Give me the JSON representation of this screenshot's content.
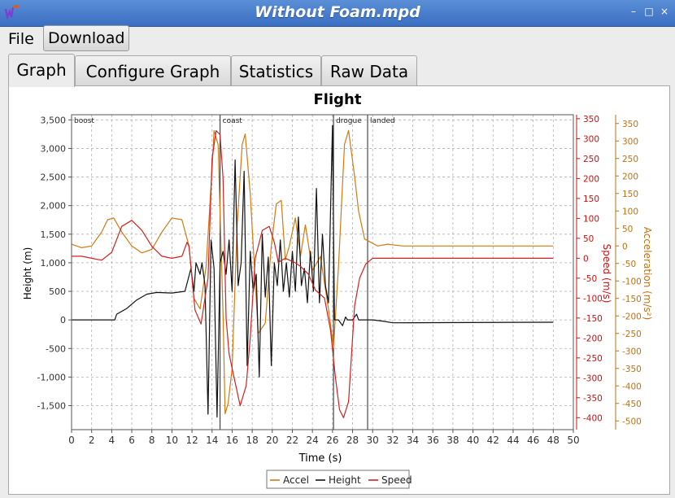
{
  "window": {
    "title": "Without Foam.mpd",
    "buttons": [
      "–",
      "□",
      "×"
    ]
  },
  "menu": {
    "file": "File",
    "download": "Download"
  },
  "tabs": [
    {
      "label": "Graph",
      "active": true
    },
    {
      "label": "Configure Graph",
      "active": false
    },
    {
      "label": "Statistics",
      "active": false
    },
    {
      "label": "Raw Data",
      "active": false
    }
  ],
  "chart_data": {
    "type": "line",
    "title": "Flight",
    "xlabel": "Time (s)",
    "ylabel_left": "Height (m)",
    "ylabel_speed": "Speed (m/s)",
    "ylabel_accel": "Acceleration (m/s²)",
    "xlim": [
      0,
      50
    ],
    "xticks": [
      0,
      2,
      4,
      6,
      8,
      10,
      12,
      14,
      16,
      18,
      20,
      22,
      24,
      26,
      28,
      30,
      32,
      34,
      36,
      38,
      40,
      42,
      44,
      46,
      48,
      50
    ],
    "height_ticks": [
      3500,
      3000,
      2500,
      2000,
      1500,
      1000,
      500,
      0,
      -500,
      -1000,
      -1500
    ],
    "height_tick_labels": [
      "3,500",
      "3,000",
      "2,500",
      "2,000",
      "1,500",
      "1,000",
      "500",
      "0",
      "-500",
      "-1,000",
      "-1,500"
    ],
    "height_lim": [
      -1920,
      3590
    ],
    "speed_ticks": [
      350,
      300,
      250,
      200,
      150,
      100,
      50,
      0,
      -50,
      -100,
      -150,
      -200,
      -250,
      -300,
      -350,
      -400
    ],
    "speed_lim": [
      -430,
      360
    ],
    "accel_ticks": [
      350,
      300,
      250,
      200,
      150,
      100,
      50,
      0,
      -50,
      -100,
      -150,
      -200,
      -250,
      -300,
      -350,
      -400,
      -450,
      -500
    ],
    "accel_lim": [
      -525,
      375
    ],
    "grid": true,
    "legend_position": "bottom",
    "events": [
      {
        "label": "boost",
        "t": 0
      },
      {
        "label": "coast",
        "t": 14.8
      },
      {
        "label": "drogue",
        "t": 26.1
      },
      {
        "label": "landed",
        "t": 29.5
      }
    ],
    "series": [
      {
        "name": "Accel",
        "axis": "accel",
        "color": "#d47a10",
        "points": [
          [
            0,
            5
          ],
          [
            1,
            -5
          ],
          [
            2,
            0
          ],
          [
            3,
            40
          ],
          [
            3.6,
            75
          ],
          [
            4.2,
            80
          ],
          [
            5,
            40
          ],
          [
            6,
            0
          ],
          [
            7,
            -20
          ],
          [
            8,
            -10
          ],
          [
            9,
            40
          ],
          [
            10,
            80
          ],
          [
            11,
            75
          ],
          [
            11.7,
            0
          ],
          [
            12.2,
            -150
          ],
          [
            12.8,
            -180
          ],
          [
            13.4,
            -60
          ],
          [
            14,
            220
          ],
          [
            14.2,
            330
          ],
          [
            14.6,
            290
          ],
          [
            15.1,
            -200
          ],
          [
            15.3,
            -480
          ],
          [
            15.6,
            -450
          ],
          [
            16,
            -350
          ],
          [
            16.5,
            60
          ],
          [
            17,
            290
          ],
          [
            17.3,
            320
          ],
          [
            17.8,
            150
          ],
          [
            18.6,
            -250
          ],
          [
            19.3,
            -220
          ],
          [
            19.9,
            0
          ],
          [
            20.4,
            120
          ],
          [
            20.9,
            130
          ],
          [
            21.3,
            -40
          ],
          [
            21.7,
            0
          ],
          [
            22.3,
            80
          ],
          [
            22.8,
            -30
          ],
          [
            23.3,
            60
          ],
          [
            24,
            -70
          ],
          [
            24.8,
            -30
          ],
          [
            25.6,
            -180
          ],
          [
            26.1,
            -290
          ],
          [
            26.6,
            -60
          ],
          [
            27.2,
            290
          ],
          [
            27.6,
            330
          ],
          [
            28.2,
            200
          ],
          [
            28.6,
            100
          ],
          [
            29.2,
            20
          ],
          [
            30.5,
            0
          ],
          [
            31.5,
            5
          ],
          [
            33,
            0
          ],
          [
            48,
            0
          ]
        ]
      },
      {
        "name": "Height",
        "axis": "height",
        "color": "#111111",
        "points": [
          [
            0,
            0
          ],
          [
            3,
            0
          ],
          [
            4.3,
            0
          ],
          [
            4.5,
            100
          ],
          [
            5.5,
            200
          ],
          [
            6.5,
            350
          ],
          [
            7.5,
            450
          ],
          [
            8.5,
            480
          ],
          [
            10,
            470
          ],
          [
            11.3,
            500
          ],
          [
            11.6,
            700
          ],
          [
            11.9,
            900
          ],
          [
            12.2,
            500
          ],
          [
            12.4,
            1000
          ],
          [
            12.8,
            800
          ],
          [
            13.0,
            1000
          ],
          [
            13.3,
            600
          ],
          [
            13.6,
            -1650
          ],
          [
            13.9,
            1400
          ],
          [
            14.2,
            900
          ],
          [
            14.5,
            -1700
          ],
          [
            14.8,
            1000
          ],
          [
            15.1,
            1200
          ],
          [
            15.4,
            800
          ],
          [
            15.7,
            1400
          ],
          [
            16.0,
            500
          ],
          [
            16.3,
            2800
          ],
          [
            16.6,
            600
          ],
          [
            16.9,
            1000
          ],
          [
            17.2,
            2600
          ],
          [
            17.5,
            -800
          ],
          [
            17.8,
            1200
          ],
          [
            18.1,
            500
          ],
          [
            18.4,
            800
          ],
          [
            18.7,
            -1000
          ],
          [
            19.0,
            1500
          ],
          [
            19.3,
            400
          ],
          [
            19.6,
            1100
          ],
          [
            19.9,
            -800
          ],
          [
            20.2,
            1000
          ],
          [
            20.5,
            600
          ],
          [
            20.8,
            1400
          ],
          [
            21.1,
            500
          ],
          [
            21.4,
            1000
          ],
          [
            21.7,
            400
          ],
          [
            22.0,
            1200
          ],
          [
            22.3,
            500
          ],
          [
            22.6,
            1800
          ],
          [
            22.9,
            600
          ],
          [
            23.2,
            900
          ],
          [
            23.5,
            300
          ],
          [
            23.8,
            1200
          ],
          [
            24.1,
            500
          ],
          [
            24.4,
            2300
          ],
          [
            24.7,
            300
          ],
          [
            25.0,
            1500
          ],
          [
            25.3,
            600
          ],
          [
            25.6,
            300
          ],
          [
            26.0,
            3400
          ],
          [
            26.2,
            0
          ],
          [
            26.6,
            0
          ],
          [
            27,
            -100
          ],
          [
            27.3,
            50
          ],
          [
            27.5,
            0
          ],
          [
            28,
            0
          ],
          [
            28.4,
            100
          ],
          [
            28.6,
            0
          ],
          [
            30,
            0
          ],
          [
            31,
            -20
          ],
          [
            32,
            -50
          ],
          [
            48,
            -40
          ]
        ]
      },
      {
        "name": "Speed",
        "axis": "speed",
        "color": "#d42020",
        "points": [
          [
            0,
            5
          ],
          [
            1,
            5
          ],
          [
            2,
            0
          ],
          [
            3,
            -5
          ],
          [
            4,
            15
          ],
          [
            5,
            80
          ],
          [
            6,
            95
          ],
          [
            7,
            70
          ],
          [
            8,
            30
          ],
          [
            9,
            5
          ],
          [
            10,
            0
          ],
          [
            11,
            5
          ],
          [
            11.5,
            40
          ],
          [
            11.7,
            30
          ],
          [
            12.3,
            -130
          ],
          [
            12.9,
            -165
          ],
          [
            13.6,
            -50
          ],
          [
            14,
            250
          ],
          [
            14.4,
            320
          ],
          [
            14.8,
            310
          ],
          [
            15.1,
            200
          ],
          [
            15.4,
            -150
          ],
          [
            15.7,
            -240
          ],
          [
            16.2,
            -300
          ],
          [
            16.8,
            -370
          ],
          [
            17.4,
            -320
          ],
          [
            17.8,
            -200
          ],
          [
            18.3,
            0
          ],
          [
            19,
            70
          ],
          [
            19.7,
            80
          ],
          [
            20.2,
            40
          ],
          [
            20.6,
            -10
          ],
          [
            21.3,
            0
          ],
          [
            22.2,
            -10
          ],
          [
            22.8,
            -20
          ],
          [
            23.6,
            -40
          ],
          [
            24.3,
            -80
          ],
          [
            25.2,
            -100
          ],
          [
            25.8,
            -180
          ],
          [
            26.3,
            -300
          ],
          [
            26.7,
            -380
          ],
          [
            27.1,
            -400
          ],
          [
            27.6,
            -360
          ],
          [
            28.2,
            -120
          ],
          [
            28.7,
            -50
          ],
          [
            29.3,
            -15
          ],
          [
            30,
            0
          ],
          [
            31,
            0
          ],
          [
            33,
            0
          ],
          [
            48,
            0
          ]
        ]
      }
    ]
  }
}
